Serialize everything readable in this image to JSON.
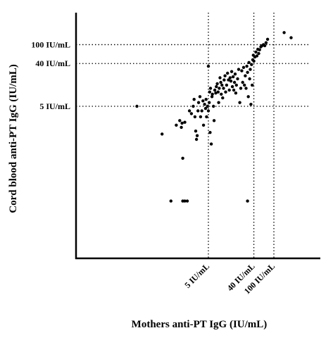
{
  "chart_data": {
    "type": "scatter",
    "title": "",
    "xlabel": "Mothers anti-PT IgG (IU/mL)",
    "ylabel": "Cord blood anti-PT IgG (IU/mL)",
    "scale": "log",
    "grid": false,
    "reference_lines": {
      "x": [
        {
          "value": 5,
          "label": "5 IU/mL"
        },
        {
          "value": 40,
          "label": "40 IU/mL"
        },
        {
          "value": 100,
          "label": "100 IU/mL"
        }
      ],
      "y": [
        {
          "value": 5,
          "label": "5 IU/mL"
        },
        {
          "value": 40,
          "label": "40 IU/mL"
        },
        {
          "value": 100,
          "label": "100 IU/mL"
        }
      ]
    },
    "series": [
      {
        "points": [
          [
            0.19,
            5.0
          ],
          [
            0.6,
            1.3
          ],
          [
            1.15,
            2.0
          ],
          [
            1.35,
            2.5
          ],
          [
            1.45,
            1.8
          ],
          [
            1.5,
            2.2
          ],
          [
            1.7,
            2.3
          ],
          [
            0.9,
            0.05
          ],
          [
            1.55,
            0.4
          ],
          [
            1.55,
            0.05
          ],
          [
            1.7,
            0.05
          ],
          [
            1.9,
            0.05
          ],
          [
            2.1,
            4.0
          ],
          [
            2.3,
            3.5
          ],
          [
            2.5,
            5.0
          ],
          [
            2.6,
            7.0
          ],
          [
            2.7,
            3.0
          ],
          [
            2.8,
            1.5
          ],
          [
            2.9,
            1.0
          ],
          [
            3.0,
            1.2
          ],
          [
            3.1,
            4.0
          ],
          [
            3.2,
            6.0
          ],
          [
            3.4,
            8.0
          ],
          [
            3.5,
            3.0
          ],
          [
            3.7,
            4.0
          ],
          [
            3.9,
            6.5
          ],
          [
            4.0,
            2.0
          ],
          [
            4.2,
            5.5
          ],
          [
            4.4,
            4.5
          ],
          [
            4.5,
            7.0
          ],
          [
            4.6,
            3.0
          ],
          [
            4.8,
            5.0
          ],
          [
            5.0,
            4.0
          ],
          [
            5.0,
            35.0
          ],
          [
            5.2,
            6.0
          ],
          [
            5.3,
            10.0
          ],
          [
            5.4,
            1.4
          ],
          [
            5.5,
            12.0
          ],
          [
            5.7,
            0.8
          ],
          [
            5.9,
            8.0
          ],
          [
            6.0,
            9.0
          ],
          [
            6.3,
            5.0
          ],
          [
            6.5,
            2.5
          ],
          [
            6.7,
            11.0
          ],
          [
            7.0,
            9.5
          ],
          [
            7.2,
            13.0
          ],
          [
            7.5,
            15.0
          ],
          [
            7.8,
            10.0
          ],
          [
            8.0,
            6.0
          ],
          [
            8.2,
            12.0
          ],
          [
            8.5,
            20.0
          ],
          [
            8.8,
            16.0
          ],
          [
            9.0,
            9.0
          ],
          [
            9.3,
            14.0
          ],
          [
            9.6,
            7.5
          ],
          [
            10.0,
            12.0
          ],
          [
            10.3,
            18.0
          ],
          [
            10.7,
            22.0
          ],
          [
            11.0,
            10.0
          ],
          [
            11.5,
            14.0
          ],
          [
            12.0,
            25.0
          ],
          [
            12.5,
            18.0
          ],
          [
            13.0,
            11.0
          ],
          [
            13.5,
            20.0
          ],
          [
            14.0,
            17.0
          ],
          [
            14.5,
            27.0
          ],
          [
            15.0,
            13.0
          ],
          [
            15.5,
            21.0
          ],
          [
            16.0,
            11.0
          ],
          [
            16.5,
            16.0
          ],
          [
            17.0,
            24.0
          ],
          [
            17.5,
            9.5
          ],
          [
            18.0,
            14.0
          ],
          [
            19.0,
            19.0
          ],
          [
            20.0,
            30.0
          ],
          [
            21.0,
            6.0
          ],
          [
            22.0,
            12.0
          ],
          [
            23.0,
            28.0
          ],
          [
            24.0,
            16.0
          ],
          [
            25.0,
            33.0
          ],
          [
            26.0,
            14.0
          ],
          [
            27.0,
            22.0
          ],
          [
            28.0,
            12.0
          ],
          [
            29.0,
            35.0
          ],
          [
            30.0,
            26.0
          ],
          [
            31.0,
            8.0
          ],
          [
            32.0,
            42.0
          ],
          [
            33.0,
            19.0
          ],
          [
            34.0,
            30.0
          ],
          [
            35.0,
            5.5
          ],
          [
            36.0,
            38.0
          ],
          [
            37.0,
            14.0
          ],
          [
            38.0,
            48.0
          ],
          [
            39.0,
            60.0
          ],
          [
            40.0,
            45.0
          ],
          [
            42.0,
            55.0
          ],
          [
            44.0,
            70.0
          ],
          [
            46.0,
            58.0
          ],
          [
            48.0,
            80.0
          ],
          [
            50.0,
            65.0
          ],
          [
            52.0,
            78.0
          ],
          [
            55.0,
            90.0
          ],
          [
            58.0,
            95.0
          ],
          [
            62.0,
            100.0
          ],
          [
            66.0,
            95.0
          ],
          [
            70.0,
            110.0
          ],
          [
            75.0,
            130.0
          ],
          [
            160.0,
            180.0
          ],
          [
            220.0,
            140.0
          ],
          [
            30.0,
            0.05
          ]
        ]
      }
    ],
    "xlim": [
      0.1,
      400
    ],
    "ylim": [
      0.01,
      400
    ]
  }
}
